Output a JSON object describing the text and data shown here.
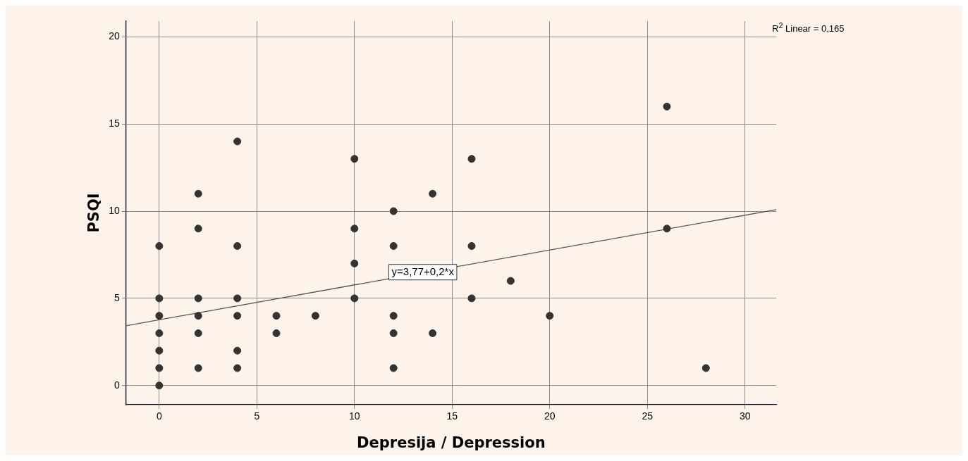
{
  "chart_data": {
    "type": "scatter",
    "xlabel": "Depresija / Depression",
    "ylabel": "PSQI",
    "xlim": [
      -1.7,
      31.6
    ],
    "ylim": [
      -1.1,
      20.9
    ],
    "xticks": [
      0,
      5,
      10,
      15,
      20,
      25,
      30
    ],
    "yticks": [
      0,
      5,
      10,
      15,
      20
    ],
    "grid": true,
    "legend": false,
    "series": [
      {
        "color": "#333333",
        "marker": "circle",
        "x": [
          0,
          0,
          0,
          0,
          0,
          0,
          0,
          2,
          2,
          2,
          2,
          2,
          2,
          4,
          4,
          4,
          4,
          4,
          4,
          6,
          6,
          8,
          10,
          10,
          10,
          10,
          12,
          12,
          12,
          12,
          12,
          14,
          14,
          16,
          16,
          16,
          18,
          20,
          26,
          26,
          28
        ],
        "values": [
          0,
          1,
          2,
          3,
          4,
          5,
          8,
          1,
          3,
          4,
          5,
          9,
          11,
          1,
          2,
          4,
          5,
          8,
          14,
          3,
          4,
          4,
          5,
          7,
          9,
          13,
          1,
          3,
          4,
          8,
          10,
          3,
          11,
          5,
          8,
          13,
          6,
          4,
          9,
          16,
          1
        ]
      },
      {
        "type": "line",
        "color": "#555555",
        "marker": "none",
        "line_style": "solid",
        "x": [
          -1.7,
          31.6
        ],
        "values": [
          3.43,
          10.09
        ]
      }
    ],
    "annotations": [
      "R$^{2}$ Linear = 0,165",
      {
        "text": "y=3,77+0,2*x",
        "x": 13.5,
        "y": 6.5
      }
    ]
  }
}
